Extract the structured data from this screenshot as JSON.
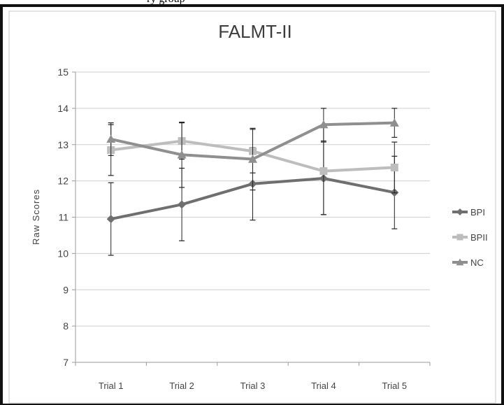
{
  "caption_fragment": "ry group",
  "chart_data": {
    "type": "line",
    "title": "FALMT-II",
    "xlabel": "",
    "ylabel": "Raw Scores",
    "categories": [
      "Trial 1",
      "Trial 2",
      "Trial 3",
      "Trial 4",
      "Trial 5"
    ],
    "ylim": [
      7,
      15
    ],
    "yticks": [
      7,
      8,
      9,
      10,
      11,
      12,
      13,
      14,
      15
    ],
    "grid": true,
    "legend_position": "right",
    "series": [
      {
        "name": "BPI",
        "marker": "diamond",
        "color": "#6f6f6f",
        "values": [
          10.95,
          11.35,
          11.92,
          12.07,
          11.68
        ],
        "error": [
          1.0,
          1.0,
          1.0,
          1.0,
          1.0
        ]
      },
      {
        "name": "BPII",
        "marker": "square",
        "color": "#bdbdbd",
        "values": [
          12.85,
          13.1,
          12.82,
          12.27,
          12.37
        ],
        "error": [
          0.7,
          0.5,
          0.6,
          1.2,
          0.7
        ]
      },
      {
        "name": "NC",
        "marker": "triangle",
        "color": "#8f8f8f",
        "values": [
          13.15,
          12.72,
          12.6,
          13.55,
          13.6
        ],
        "error": [
          0.45,
          0.9,
          0.85,
          0.45,
          0.4
        ]
      }
    ]
  }
}
